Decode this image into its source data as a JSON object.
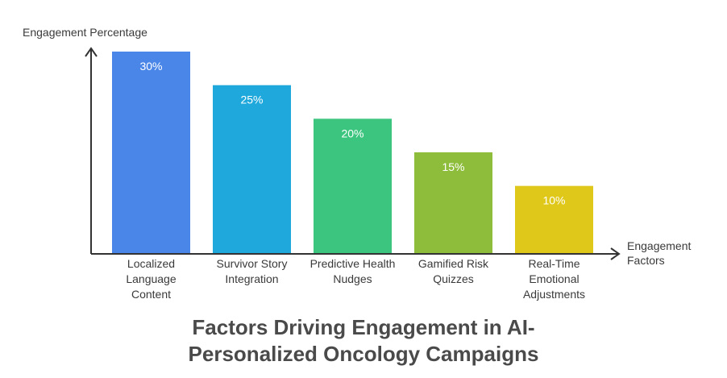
{
  "chart_data": {
    "type": "bar",
    "title_lines": [
      "Factors Driving Engagement in AI-",
      "Personalized Oncology Campaigns"
    ],
    "ylabel": "Engagement Percentage",
    "xlabel_lines": [
      "Engagement",
      "Factors"
    ],
    "ylim": [
      0,
      30
    ],
    "grid": false,
    "categories": [
      [
        "Localized",
        "Language",
        "Content"
      ],
      [
        "Survivor Story",
        "Integration"
      ],
      [
        "Predictive Health",
        "Nudges"
      ],
      [
        "Gamified Risk",
        "Quizzes"
      ],
      [
        "Real-Time",
        "Emotional",
        "Adjustments"
      ]
    ],
    "values": [
      30,
      25,
      20,
      15,
      10
    ],
    "value_labels": [
      "30%",
      "25%",
      "20%",
      "15%",
      "10%"
    ],
    "colors": [
      "#4a86e8",
      "#1ea8dc",
      "#3cc57e",
      "#8dbd3a",
      "#e0c81a"
    ]
  }
}
